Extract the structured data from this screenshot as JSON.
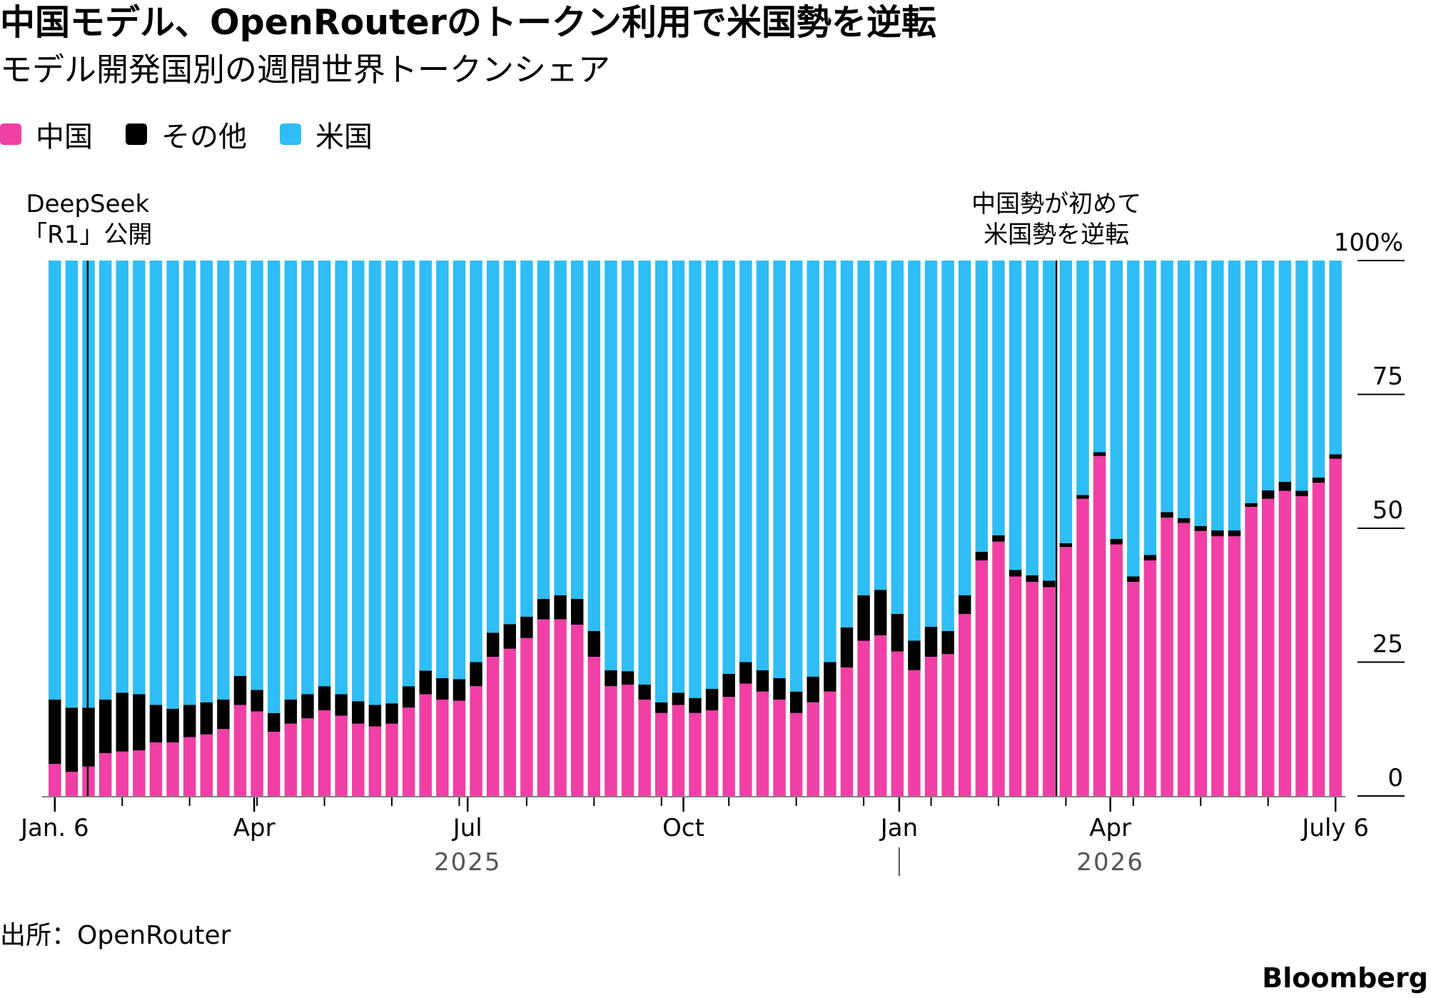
{
  "title": "中国モデル、OpenRouterのトークン利用で米国勢を逆転",
  "subtitle": "モデル開発国別の週間世界トークンシェア",
  "source": "出所：OpenRouter",
  "brand": "Bloomberg",
  "colors": {
    "china": "#f03fa5",
    "other": "#000000",
    "us": "#2ebdf4"
  },
  "chart_data": {
    "type": "bar",
    "stacked": true,
    "ylim": [
      0,
      100
    ],
    "yticks": [
      "0",
      "25",
      "50",
      "75",
      "100%"
    ],
    "ytick_values": [
      0,
      25,
      50,
      75,
      100
    ],
    "legend": [
      {
        "key": "china",
        "label": "中国"
      },
      {
        "key": "other",
        "label": "その他"
      },
      {
        "key": "us",
        "label": "米国"
      }
    ],
    "x_start": "2025-01-06",
    "x_end": "2026-07-06",
    "xtick_labels": [
      {
        "label": "Jan. 6",
        "date": "2025-01-06"
      },
      {
        "label": "Apr",
        "date": "2025-04-01"
      },
      {
        "label": "Jul",
        "date": "2025-07-01"
      },
      {
        "label": "Oct",
        "date": "2025-10-01"
      },
      {
        "label": "Jan",
        "date": "2026-01-01"
      },
      {
        "label": "Apr",
        "date": "2026-04-01"
      },
      {
        "label": "July 6",
        "date": "2026-07-06"
      }
    ],
    "years": [
      {
        "label": "2025",
        "date": "2025-07-01"
      },
      {
        "label": "2026",
        "date": "2026-04-01"
      }
    ],
    "year_separator_date": "2026-01-01",
    "annotations": [
      {
        "lines": [
          "DeepSeek",
          "「R1」公開"
        ],
        "date": "2025-01-20"
      },
      {
        "lines": [
          "中国勢が初めて",
          "米国勢を逆転"
        ],
        "date": "2026-03-09"
      }
    ],
    "series": [
      {
        "name": "中国",
        "key": "china",
        "values": [
          6.0,
          4.5,
          5.5,
          8.0,
          8.3,
          8.5,
          10.0,
          10.0,
          11.0,
          11.5,
          12.5,
          17.0,
          15.8,
          12.0,
          13.5,
          14.5,
          16.0,
          15.0,
          13.5,
          13.0,
          13.5,
          16.5,
          19.0,
          18.0,
          17.8,
          20.5,
          26.0,
          27.5,
          29.5,
          33.0,
          33.0,
          32.0,
          26.0,
          20.5,
          20.8,
          18.0,
          15.5,
          17.0,
          15.5,
          16.0,
          18.5,
          21.0,
          19.5,
          18.0,
          15.5,
          17.5,
          19.5,
          24.0,
          29.0,
          30.0,
          27.0,
          23.5,
          26.0,
          26.5,
          34.0,
          44.0,
          47.5,
          41.0,
          40.0,
          39.0,
          46.5,
          55.5,
          63.5,
          47.0,
          40.0,
          44.0,
          52.0,
          51.0,
          49.5,
          48.5,
          48.5,
          54.0,
          55.5,
          57.0,
          56.0,
          58.5,
          63.0
        ]
      },
      {
        "name": "その他",
        "key": "other",
        "values": [
          12.0,
          12.0,
          11.0,
          10.0,
          11.0,
          10.5,
          7.0,
          6.3,
          6.0,
          6.0,
          5.5,
          5.4,
          4.0,
          3.5,
          4.5,
          4.5,
          4.5,
          4.0,
          4.2,
          4.0,
          3.8,
          4.0,
          4.4,
          4.0,
          4.0,
          4.5,
          4.5,
          4.6,
          4.0,
          3.8,
          4.5,
          4.8,
          4.8,
          3.0,
          2.5,
          2.8,
          2.0,
          2.3,
          2.8,
          4.0,
          4.3,
          4.0,
          4.0,
          4.0,
          4.0,
          4.8,
          5.5,
          7.5,
          8.5,
          8.5,
          7.0,
          5.5,
          5.6,
          4.3,
          3.5,
          1.6,
          1.2,
          1.2,
          1.2,
          1.2,
          0.7,
          0.7,
          0.7,
          1.0,
          1.0,
          1.0,
          1.0,
          0.9,
          0.9,
          1.1,
          1.1,
          0.7,
          1.6,
          1.7,
          1.0,
          1.0,
          0.8
        ]
      },
      {
        "name": "米国",
        "key": "us",
        "values": [
          82.0,
          83.5,
          83.5,
          82.0,
          80.7,
          81.0,
          83.0,
          83.7,
          83.0,
          82.5,
          82.0,
          77.6,
          80.2,
          84.5,
          82.0,
          81.0,
          79.5,
          81.0,
          82.3,
          83.0,
          82.7,
          79.5,
          76.6,
          78.0,
          78.2,
          75.0,
          69.5,
          67.9,
          66.5,
          63.2,
          62.5,
          63.2,
          69.2,
          76.5,
          76.7,
          79.2,
          82.5,
          80.7,
          81.7,
          80.0,
          77.2,
          75.0,
          76.5,
          78.0,
          80.5,
          77.7,
          75.0,
          68.5,
          62.5,
          61.5,
          66.0,
          71.0,
          68.4,
          69.2,
          62.5,
          54.4,
          51.3,
          57.8,
          58.8,
          59.8,
          52.8,
          43.8,
          35.8,
          52.0,
          59.0,
          55.0,
          47.0,
          48.1,
          49.6,
          50.4,
          50.4,
          45.3,
          42.9,
          41.3,
          43.0,
          40.5,
          36.2
        ]
      }
    ]
  }
}
